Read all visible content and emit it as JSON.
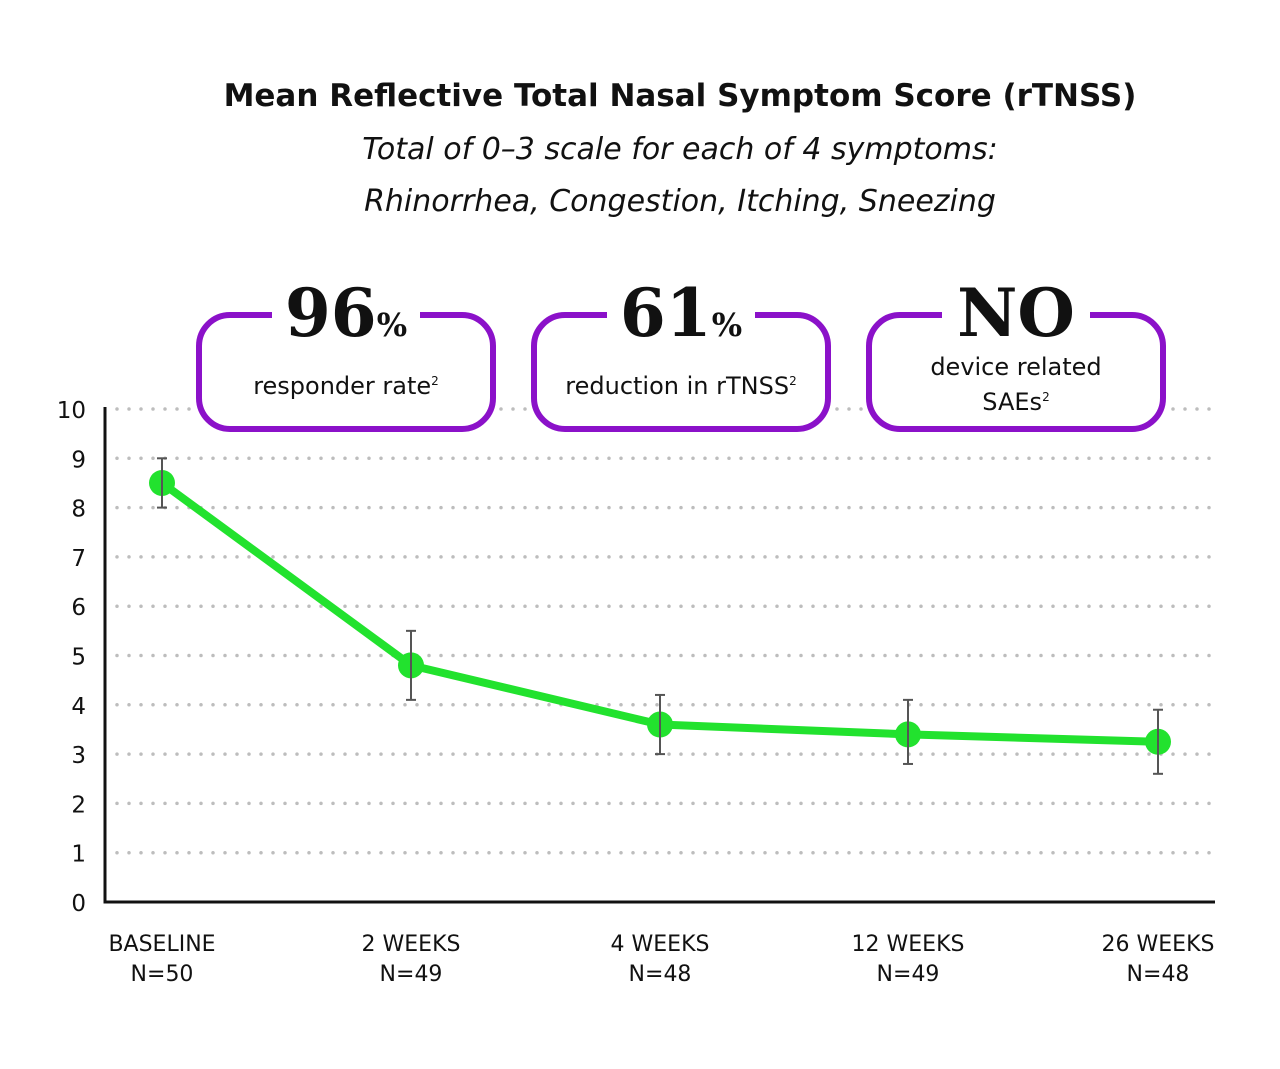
{
  "chart_data": {
    "type": "line",
    "title": "Mean Reflective Total Nasal Symptom Score (rTNSS)",
    "subtitle_lines": [
      "Total of 0–3 scale for each of 4 symptoms:",
      "Rhinorrhea, Congestion, Itching, Sneezing"
    ],
    "categories": [
      [
        "BASELINE",
        "N=50"
      ],
      [
        "2 WEEKS",
        "N=49"
      ],
      [
        "4 WEEKS",
        "N=48"
      ],
      [
        "12 WEEKS",
        "N=49"
      ],
      [
        "26 WEEKS",
        "N=48"
      ]
    ],
    "series": [
      {
        "values": [
          8.5,
          4.8,
          3.6,
          3.4,
          3.25
        ],
        "error_low": [
          8.0,
          4.1,
          3.0,
          2.8,
          2.6
        ],
        "error_high": [
          9.0,
          5.5,
          4.2,
          4.1,
          3.9
        ]
      }
    ],
    "ylim": [
      0,
      10
    ],
    "yticks": [
      0,
      1,
      2,
      3,
      4,
      5,
      6,
      7,
      8,
      9,
      10
    ],
    "grid": "dotted horizontal",
    "colors": {
      "line": "#22e22e",
      "callout_border": "#8b11c9",
      "grid": "#bdbdbd",
      "error_bar": "#555555"
    }
  },
  "callouts": [
    {
      "big": "96",
      "suffix": "%",
      "text": "responder rate",
      "sup": "2"
    },
    {
      "big": "61",
      "suffix": "%",
      "text": "reduction in rTNSS",
      "sup": "2"
    },
    {
      "big": "NO",
      "suffix": "",
      "text_line1": "device related",
      "text_line2": "SAEs",
      "sup": "2"
    }
  ]
}
